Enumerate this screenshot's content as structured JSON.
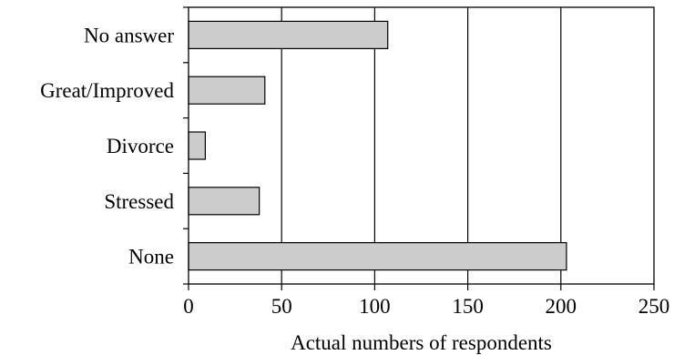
{
  "chart_data": {
    "type": "bar",
    "orientation": "horizontal",
    "categories": [
      "No answer",
      "Great/Improved",
      "Divorce",
      "Stressed",
      "None"
    ],
    "values": [
      107,
      41,
      9,
      38,
      203
    ],
    "title": "",
    "xlabel": "Actual numbers of respondents",
    "ylabel": "",
    "xlim": [
      0,
      250
    ],
    "xticks": [
      0,
      50,
      100,
      150,
      200,
      250
    ],
    "grid": "vertical",
    "legend": "none",
    "bar_color": "#cccccc",
    "bar_edge_color": "#000000"
  }
}
